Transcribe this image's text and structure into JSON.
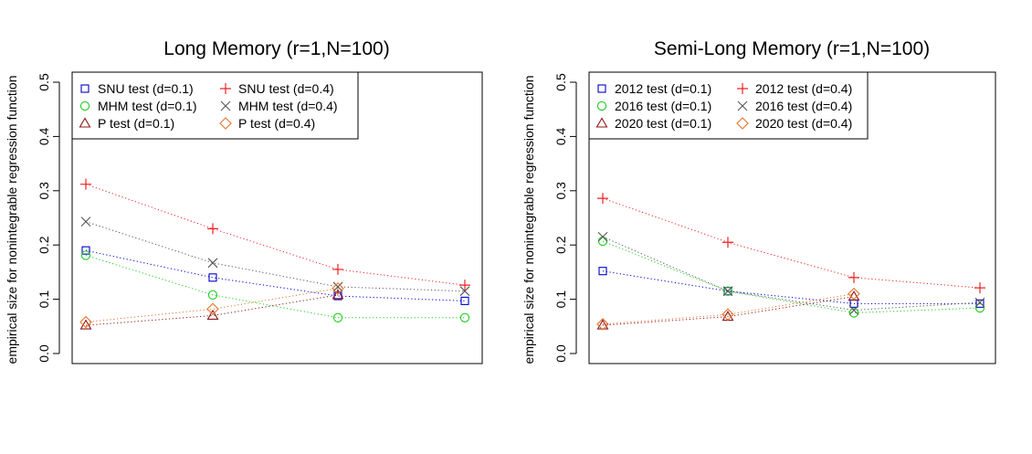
{
  "chart_data": [
    {
      "type": "line",
      "title": "Long Memory (r=1,N=100)",
      "xlabel": "",
      "ylabel": "empirical size for nonintegrable regression function",
      "ylim": [
        0,
        0.5
      ],
      "yticks": [
        "0.0",
        "0.1",
        "0.2",
        "0.3",
        "0.4",
        "0.5"
      ],
      "x": [
        1,
        2,
        3,
        4
      ],
      "xticks_visible": false,
      "grid": false,
      "legend_position": "top-left",
      "series": [
        {
          "name": "SNU test (d=0.1)",
          "color": "#0000cc",
          "marker": "square",
          "values": [
            0.19,
            0.14,
            0.106,
            0.097
          ]
        },
        {
          "name": "MHM test (d=0.1)",
          "color": "#22cc22",
          "marker": "circle",
          "values": [
            0.181,
            0.108,
            0.066,
            0.066
          ]
        },
        {
          "name": "P test (d=0.1)",
          "color": "#8b1a1a",
          "marker": "triangle",
          "values": [
            0.052,
            0.07,
            0.108,
            null
          ]
        },
        {
          "name": "SNU test (d=0.4)",
          "color": "#ee2222",
          "marker": "plus",
          "values": [
            0.312,
            0.23,
            0.155,
            0.126
          ]
        },
        {
          "name": "MHM test (d=0.4)",
          "color": "#555555",
          "marker": "cross",
          "values": [
            0.243,
            0.167,
            0.123,
            0.115
          ]
        },
        {
          "name": "P test (d=0.4)",
          "color": "#e6732e",
          "marker": "diamond",
          "values": [
            0.058,
            0.082,
            0.12,
            null
          ]
        }
      ]
    },
    {
      "type": "line",
      "title": "Semi-Long Memory (r=1,N=100)",
      "xlabel": "",
      "ylabel": "empirical size for nonintegrable regression function",
      "ylim": [
        0,
        0.5
      ],
      "yticks": [
        "0.0",
        "0.1",
        "0.2",
        "0.3",
        "0.4",
        "0.5"
      ],
      "x": [
        1,
        2,
        3,
        4
      ],
      "xticks_visible": false,
      "grid": false,
      "legend_position": "top-left",
      "series": [
        {
          "name": "2012 test (d=0.1)",
          "color": "#0000cc",
          "marker": "square",
          "values": [
            0.152,
            0.115,
            0.092,
            0.092
          ]
        },
        {
          "name": "2016 test (d=0.1)",
          "color": "#22cc22",
          "marker": "circle",
          "values": [
            0.207,
            0.115,
            0.075,
            0.084
          ]
        },
        {
          "name": "2020 test (d=0.1)",
          "color": "#8b1a1a",
          "marker": "triangle",
          "values": [
            0.052,
            0.068,
            0.105,
            null
          ]
        },
        {
          "name": "2012 test (d=0.4)",
          "color": "#ee2222",
          "marker": "plus",
          "values": [
            0.286,
            0.205,
            0.14,
            0.121
          ]
        },
        {
          "name": "2016 test (d=0.4)",
          "color": "#555555",
          "marker": "cross",
          "values": [
            0.215,
            0.115,
            0.08,
            0.094
          ]
        },
        {
          "name": "2020 test (d=0.4)",
          "color": "#e6732e",
          "marker": "diamond",
          "values": [
            0.054,
            0.072,
            0.11,
            null
          ]
        }
      ]
    }
  ]
}
